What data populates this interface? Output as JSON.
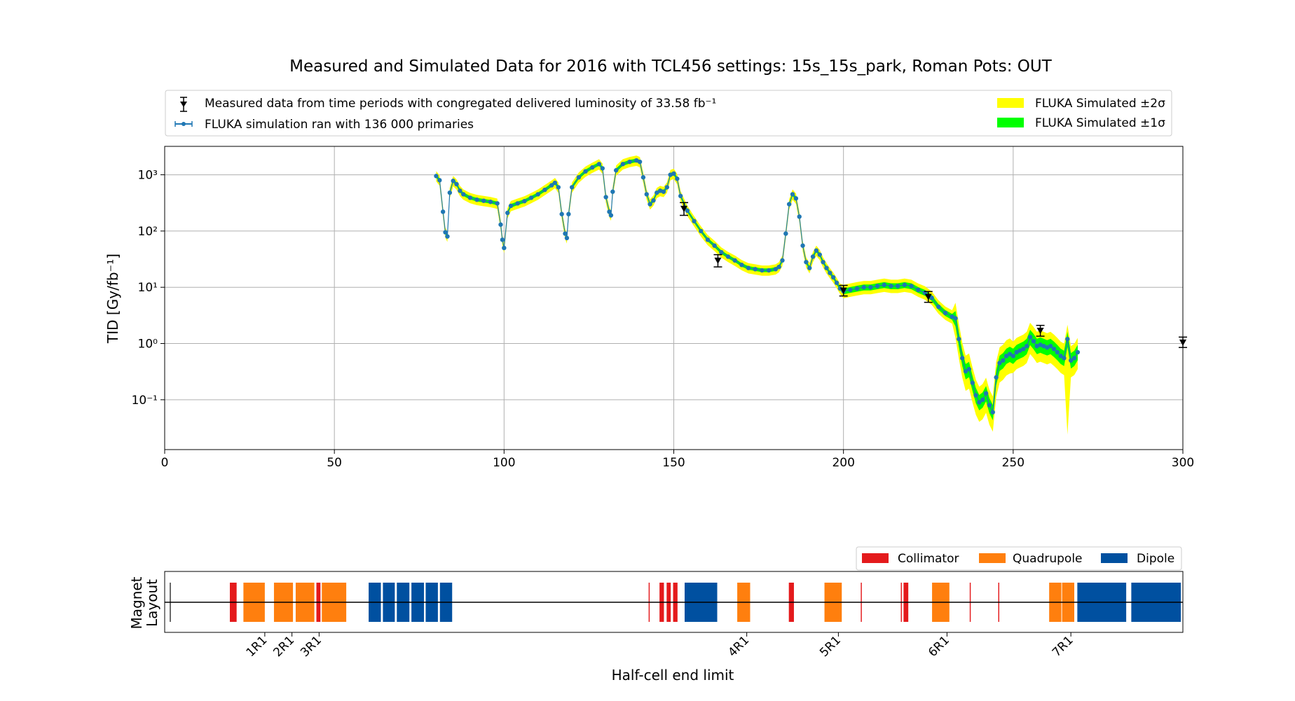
{
  "title": "Measured and Simulated Data for 2016 with TCL456 settings: 15s_15s_park, Roman Pots: OUT",
  "chart_data": [
    {
      "type": "line",
      "title": "Measured and Simulated Data for 2016 with TCL456 settings: 15s_15s_park, Roman Pots: OUT",
      "xlabel": "",
      "ylabel": "TID [Gy/fb⁻¹]",
      "xlim": [
        0,
        300
      ],
      "ylim": [
        0.013,
        3200
      ],
      "yscale": "log",
      "grid": true,
      "x_ticks": [
        0,
        50,
        100,
        150,
        200,
        250,
        300
      ],
      "y_ticks": [
        {
          "value": 0.1,
          "label": "10⁻¹"
        },
        {
          "value": 1,
          "label": "10⁰"
        },
        {
          "value": 10,
          "label": "10¹"
        },
        {
          "value": 100,
          "label": "10²"
        },
        {
          "value": 1000,
          "label": "10³"
        }
      ],
      "legend": {
        "placement": "above",
        "entries": [
          "Measured data from time periods with congregated delivered luminosity of 33.58 fb⁻¹",
          "FLUKA simulation ran with 136 000 primaries",
          "FLUKA Simulated ±2σ",
          "FLUKA Simulated ±1σ"
        ]
      },
      "colors": {
        "simulation": "#1f77b4",
        "band2": "#ffff00",
        "band1": "#00ff00",
        "measured": "#000000"
      },
      "measured": [
        {
          "x": 153,
          "y": 250,
          "yerr_low": 60,
          "yerr_high": 70
        },
        {
          "x": 163,
          "y": 30,
          "yerr_low": 7,
          "yerr_high": 8
        },
        {
          "x": 200,
          "y": 8.8,
          "yerr_low": 1.8,
          "yerr_high": 2
        },
        {
          "x": 225,
          "y": 6.8,
          "yerr_low": 1.4,
          "yerr_high": 1.6
        },
        {
          "x": 258,
          "y": 1.7,
          "yerr_low": 0.35,
          "yerr_high": 0.4
        },
        {
          "x": 300,
          "y": 1.05,
          "yerr_low": 0.2,
          "yerr_high": 0.25
        }
      ],
      "simulation_points": [
        [
          80,
          950
        ],
        [
          81,
          800
        ],
        [
          82,
          220
        ],
        [
          82.7,
          95
        ],
        [
          83.3,
          80
        ],
        [
          84,
          480
        ],
        [
          85,
          780
        ],
        [
          86,
          680
        ],
        [
          87,
          520
        ],
        [
          88,
          450
        ],
        [
          90,
          390
        ],
        [
          92,
          360
        ],
        [
          94,
          345
        ],
        [
          96,
          330
        ],
        [
          98,
          310
        ],
        [
          99,
          130
        ],
        [
          99.5,
          70
        ],
        [
          100,
          50
        ],
        [
          101,
          210
        ],
        [
          102,
          280
        ],
        [
          104,
          310
        ],
        [
          106,
          340
        ],
        [
          108,
          390
        ],
        [
          110,
          450
        ],
        [
          112,
          540
        ],
        [
          114,
          650
        ],
        [
          115,
          720
        ],
        [
          116,
          600
        ],
        [
          117,
          200
        ],
        [
          118,
          90
        ],
        [
          118.5,
          75
        ],
        [
          119,
          200
        ],
        [
          120,
          600
        ],
        [
          122,
          900
        ],
        [
          124,
          1150
        ],
        [
          126,
          1350
        ],
        [
          128,
          1550
        ],
        [
          129,
          1300
        ],
        [
          130,
          400
        ],
        [
          131,
          220
        ],
        [
          131.5,
          190
        ],
        [
          132,
          500
        ],
        [
          133,
          1200
        ],
        [
          135,
          1550
        ],
        [
          137,
          1700
        ],
        [
          139,
          1800
        ],
        [
          140,
          1700
        ],
        [
          141,
          900
        ],
        [
          142,
          450
        ],
        [
          143,
          300
        ],
        [
          144,
          350
        ],
        [
          145,
          480
        ],
        [
          146,
          520
        ],
        [
          147,
          500
        ],
        [
          148,
          600
        ],
        [
          149,
          1000
        ],
        [
          150,
          1050
        ],
        [
          151,
          850
        ],
        [
          152,
          420
        ],
        [
          154,
          230
        ],
        [
          156,
          150
        ],
        [
          158,
          100
        ],
        [
          160,
          70
        ],
        [
          162,
          55
        ],
        [
          164,
          42
        ],
        [
          166,
          35
        ],
        [
          168,
          30
        ],
        [
          170,
          25
        ],
        [
          172,
          22
        ],
        [
          174,
          21
        ],
        [
          176,
          20
        ],
        [
          178,
          20
        ],
        [
          180,
          21
        ],
        [
          181,
          23
        ],
        [
          182,
          30
        ],
        [
          183,
          90
        ],
        [
          184,
          300
        ],
        [
          185,
          450
        ],
        [
          186,
          380
        ],
        [
          187,
          180
        ],
        [
          188,
          55
        ],
        [
          189,
          28
        ],
        [
          190,
          22
        ],
        [
          191,
          35
        ],
        [
          192,
          45
        ],
        [
          193,
          38
        ],
        [
          194,
          28
        ],
        [
          195,
          22
        ],
        [
          196,
          18
        ],
        [
          197,
          15
        ],
        [
          198,
          12
        ],
        [
          199,
          9.5
        ],
        [
          200,
          8.5
        ],
        [
          202,
          9
        ],
        [
          204,
          9.5
        ],
        [
          206,
          10
        ],
        [
          208,
          10
        ],
        [
          210,
          10.5
        ],
        [
          212,
          11
        ],
        [
          214,
          10.5
        ],
        [
          216,
          10.5
        ],
        [
          218,
          11
        ],
        [
          220,
          10.5
        ],
        [
          222,
          9
        ],
        [
          224,
          8
        ],
        [
          226,
          6.5
        ],
        [
          228,
          4.5
        ],
        [
          230,
          3.5
        ],
        [
          232,
          3
        ],
        [
          233,
          2.8
        ],
        [
          234,
          1.2
        ],
        [
          235,
          0.55
        ],
        [
          236,
          0.32
        ],
        [
          237,
          0.35
        ],
        [
          238,
          0.2
        ],
        [
          239,
          0.12
        ],
        [
          240,
          0.09
        ],
        [
          241,
          0.1
        ],
        [
          242,
          0.13
        ],
        [
          243,
          0.08
        ],
        [
          244,
          0.06
        ],
        [
          245,
          0.25
        ],
        [
          246,
          0.45
        ],
        [
          247,
          0.5
        ],
        [
          248,
          0.6
        ],
        [
          249,
          0.65
        ],
        [
          250,
          0.6
        ],
        [
          251,
          0.7
        ],
        [
          252,
          0.75
        ],
        [
          253,
          0.8
        ],
        [
          254,
          0.9
        ],
        [
          255,
          1.3
        ],
        [
          256,
          1.1
        ],
        [
          257,
          0.9
        ],
        [
          258,
          0.95
        ],
        [
          259,
          0.9
        ],
        [
          260,
          0.85
        ],
        [
          261,
          0.9
        ],
        [
          262,
          0.8
        ],
        [
          263,
          0.7
        ],
        [
          264,
          0.6
        ],
        [
          265,
          0.55
        ],
        [
          266,
          1.2
        ],
        [
          267,
          0.5
        ],
        [
          268,
          0.55
        ],
        [
          269,
          0.7
        ]
      ]
    },
    {
      "type": "magnet-layout",
      "ylabel": "Magnet\nLayout",
      "xlabel": "Half-cell end limit",
      "legend": {
        "placement": "top-right",
        "entries": [
          {
            "name": "Collimator",
            "color": "#e41a1c"
          },
          {
            "name": "Quadrupole",
            "color": "#ff7f0e"
          },
          {
            "name": "Dipole",
            "color": "#0050a0"
          }
        ]
      },
      "ticks": [
        {
          "x": 29.5,
          "label": "1R1"
        },
        {
          "x": 37.5,
          "label": "2R1"
        },
        {
          "x": 45.5,
          "label": "3R1"
        },
        {
          "x": 171.5,
          "label": "4R1"
        },
        {
          "x": 198.5,
          "label": "5R1"
        },
        {
          "x": 230.5,
          "label": "6R1"
        },
        {
          "x": 267,
          "label": "7R1"
        }
      ],
      "elements": [
        {
          "kind": "marker",
          "x0": 1.5,
          "x1": 1.8
        },
        {
          "kind": "collimator",
          "x0": 19.2,
          "x1": 21.2
        },
        {
          "kind": "quadrupole",
          "x0": 23.2,
          "x1": 29.5
        },
        {
          "kind": "quadrupole",
          "x0": 32.2,
          "x1": 37.8
        },
        {
          "kind": "quadrupole",
          "x0": 38.6,
          "x1": 44.1
        },
        {
          "kind": "collimator",
          "x0": 44.7,
          "x1": 45.9
        },
        {
          "kind": "quadrupole",
          "x0": 46.3,
          "x1": 53.5
        },
        {
          "kind": "dipole",
          "x0": 60.1,
          "x1": 63.7
        },
        {
          "kind": "dipole",
          "x0": 64.3,
          "x1": 67.8
        },
        {
          "kind": "dipole",
          "x0": 68.4,
          "x1": 72.1
        },
        {
          "kind": "dipole",
          "x0": 72.7,
          "x1": 76.4
        },
        {
          "kind": "dipole",
          "x0": 76.9,
          "x1": 80.5
        },
        {
          "kind": "dipole",
          "x0": 81.1,
          "x1": 84.7
        },
        {
          "kind": "collimator",
          "x0": 142.6,
          "x1": 142.9
        },
        {
          "kind": "collimator",
          "x0": 145.8,
          "x1": 147.1
        },
        {
          "kind": "collimator",
          "x0": 147.9,
          "x1": 149.1
        },
        {
          "kind": "collimator",
          "x0": 149.8,
          "x1": 151.1
        },
        {
          "kind": "dipole",
          "x0": 153.2,
          "x1": 162.8
        },
        {
          "kind": "quadrupole",
          "x0": 168.7,
          "x1": 172.5
        },
        {
          "kind": "collimator",
          "x0": 183.9,
          "x1": 185.4
        },
        {
          "kind": "quadrupole",
          "x0": 194.4,
          "x1": 199.5
        },
        {
          "kind": "collimator",
          "x0": 205.1,
          "x1": 205.4
        },
        {
          "kind": "collimator",
          "x0": 216.9,
          "x1": 217.2
        },
        {
          "kind": "collimator",
          "x0": 217.7,
          "x1": 219.1
        },
        {
          "kind": "quadrupole",
          "x0": 226.1,
          "x1": 231.2
        },
        {
          "kind": "collimator",
          "x0": 237.2,
          "x1": 237.5
        },
        {
          "kind": "collimator",
          "x0": 245.6,
          "x1": 245.9
        },
        {
          "kind": "quadrupole",
          "x0": 260.6,
          "x1": 264.2
        },
        {
          "kind": "quadrupole",
          "x0": 264.4,
          "x1": 268.0
        },
        {
          "kind": "dipole",
          "x0": 268.9,
          "x1": 283.3
        },
        {
          "kind": "dipole",
          "x0": 284.8,
          "x1": 299.4
        }
      ]
    }
  ]
}
